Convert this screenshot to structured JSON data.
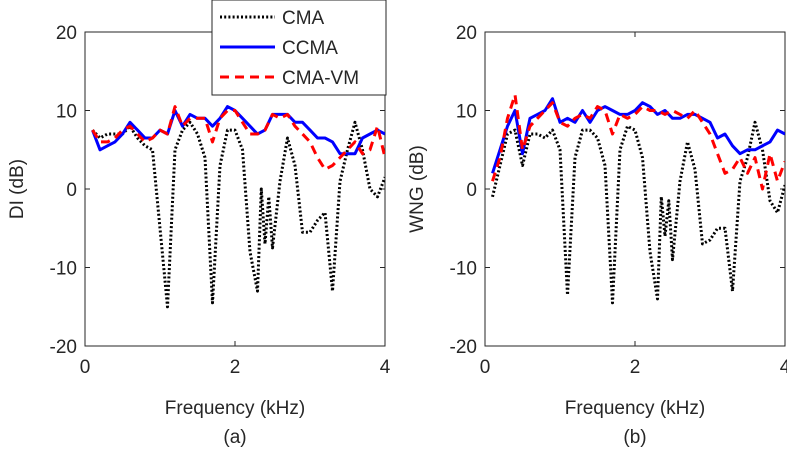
{
  "chart_data": [
    {
      "type": "line",
      "panel_label": "(a)",
      "xlabel": "Frequency (kHz)",
      "ylabel": "DI (dB)",
      "xlim": [
        0,
        4
      ],
      "ylim": [
        -20,
        20
      ],
      "xticks": [
        0,
        2,
        4
      ],
      "yticks": [
        20,
        10,
        0,
        -10,
        -20
      ],
      "grid": false,
      "series": [
        {
          "name": "CMA",
          "color": "#000000",
          "style": "dotted",
          "points": [
            [
              0.1,
              7.5
            ],
            [
              0.2,
              6.5
            ],
            [
              0.3,
              7
            ],
            [
              0.4,
              7
            ],
            [
              0.5,
              7
            ],
            [
              0.6,
              8
            ],
            [
              0.7,
              6.5
            ],
            [
              0.8,
              5.5
            ],
            [
              0.9,
              5
            ],
            [
              1.0,
              -5
            ],
            [
              1.1,
              -15
            ],
            [
              1.2,
              5
            ],
            [
              1.3,
              7.5
            ],
            [
              1.4,
              8.5
            ],
            [
              1.5,
              7
            ],
            [
              1.6,
              4
            ],
            [
              1.7,
              -14.5
            ],
            [
              1.8,
              3
            ],
            [
              1.9,
              7.5
            ],
            [
              2.0,
              7.5
            ],
            [
              2.1,
              5
            ],
            [
              2.2,
              -8
            ],
            [
              2.3,
              -13
            ],
            [
              2.35,
              0
            ],
            [
              2.4,
              -7
            ],
            [
              2.45,
              -1
            ],
            [
              2.5,
              -7.5
            ],
            [
              2.6,
              1
            ],
            [
              2.7,
              6.5
            ],
            [
              2.8,
              3
            ],
            [
              2.9,
              -5.5
            ],
            [
              3.0,
              -5.5
            ],
            [
              3.1,
              -4
            ],
            [
              3.2,
              -3
            ],
            [
              3.3,
              -13
            ],
            [
              3.4,
              1
            ],
            [
              3.5,
              5
            ],
            [
              3.6,
              8.5
            ],
            [
              3.7,
              5
            ],
            [
              3.8,
              0
            ],
            [
              3.9,
              -1
            ],
            [
              4.0,
              1.5
            ]
          ]
        },
        {
          "name": "CCMA",
          "color": "#0000ff",
          "style": "solid",
          "points": [
            [
              0.1,
              7.5
            ],
            [
              0.2,
              5
            ],
            [
              0.3,
              5.5
            ],
            [
              0.4,
              6
            ],
            [
              0.5,
              7
            ],
            [
              0.6,
              8.5
            ],
            [
              0.7,
              7.5
            ],
            [
              0.8,
              6.5
            ],
            [
              0.9,
              6.5
            ],
            [
              1.0,
              7.5
            ],
            [
              1.1,
              7
            ],
            [
              1.2,
              10
            ],
            [
              1.3,
              8
            ],
            [
              1.4,
              9.5
            ],
            [
              1.5,
              9
            ],
            [
              1.6,
              9
            ],
            [
              1.7,
              8
            ],
            [
              1.8,
              9
            ],
            [
              1.9,
              10.5
            ],
            [
              2.0,
              10
            ],
            [
              2.1,
              9
            ],
            [
              2.2,
              8
            ],
            [
              2.3,
              7
            ],
            [
              2.4,
              7.5
            ],
            [
              2.5,
              9.5
            ],
            [
              2.6,
              9.5
            ],
            [
              2.7,
              9.5
            ],
            [
              2.8,
              8.5
            ],
            [
              2.9,
              8.5
            ],
            [
              3.0,
              7.5
            ],
            [
              3.1,
              6.5
            ],
            [
              3.2,
              6.5
            ],
            [
              3.3,
              6
            ],
            [
              3.4,
              4.5
            ],
            [
              3.5,
              4.5
            ],
            [
              3.6,
              4.5
            ],
            [
              3.7,
              6.5
            ],
            [
              3.8,
              7
            ],
            [
              3.9,
              7.5
            ],
            [
              4.0,
              7
            ]
          ]
        },
        {
          "name": "CMA-VM",
          "color": "#ff0000",
          "style": "dashed",
          "points": [
            [
              0.1,
              7.5
            ],
            [
              0.2,
              6
            ],
            [
              0.3,
              6
            ],
            [
              0.4,
              6.5
            ],
            [
              0.5,
              7.5
            ],
            [
              0.6,
              8
            ],
            [
              0.7,
              7
            ],
            [
              0.8,
              6
            ],
            [
              0.9,
              6.5
            ],
            [
              1.0,
              7.5
            ],
            [
              1.1,
              7
            ],
            [
              1.2,
              10.5
            ],
            [
              1.3,
              8
            ],
            [
              1.4,
              9
            ],
            [
              1.5,
              9
            ],
            [
              1.6,
              9
            ],
            [
              1.7,
              6
            ],
            [
              1.8,
              9
            ],
            [
              1.9,
              10
            ],
            [
              2.0,
              10
            ],
            [
              2.1,
              8.5
            ],
            [
              2.2,
              7
            ],
            [
              2.3,
              7
            ],
            [
              2.4,
              7.5
            ],
            [
              2.5,
              9.5
            ],
            [
              2.6,
              9
            ],
            [
              2.7,
              9.5
            ],
            [
              2.8,
              8
            ],
            [
              2.9,
              7
            ],
            [
              3.0,
              6
            ],
            [
              3.1,
              4
            ],
            [
              3.2,
              2.5
            ],
            [
              3.3,
              3
            ],
            [
              3.4,
              4
            ],
            [
              3.5,
              5
            ],
            [
              3.6,
              6
            ],
            [
              3.7,
              4.5
            ],
            [
              3.8,
              5
            ],
            [
              3.9,
              8
            ],
            [
              4.0,
              4
            ]
          ]
        }
      ]
    },
    {
      "type": "line",
      "panel_label": "(b)",
      "xlabel": "Frequency (kHz)",
      "ylabel": "WNG (dB)",
      "xlim": [
        0,
        4
      ],
      "ylim": [
        -20,
        20
      ],
      "xticks": [
        0,
        2,
        4
      ],
      "yticks": [
        20,
        10,
        0,
        -10,
        -20
      ],
      "grid": false,
      "series": [
        {
          "name": "CMA",
          "color": "#000000",
          "style": "dotted",
          "points": [
            [
              0.1,
              -1
            ],
            [
              0.2,
              3
            ],
            [
              0.3,
              7
            ],
            [
              0.4,
              7.5
            ],
            [
              0.5,
              3
            ],
            [
              0.6,
              7
            ],
            [
              0.7,
              7
            ],
            [
              0.8,
              6.5
            ],
            [
              0.9,
              7.5
            ],
            [
              1.0,
              5
            ],
            [
              1.1,
              -13.5
            ],
            [
              1.2,
              4
            ],
            [
              1.3,
              7.5
            ],
            [
              1.4,
              7.5
            ],
            [
              1.5,
              6.5
            ],
            [
              1.6,
              3
            ],
            [
              1.7,
              -14.5
            ],
            [
              1.8,
              5
            ],
            [
              1.9,
              8
            ],
            [
              2.0,
              7.5
            ],
            [
              2.1,
              4
            ],
            [
              2.2,
              -8
            ],
            [
              2.3,
              -14
            ],
            [
              2.35,
              -1
            ],
            [
              2.4,
              -6
            ],
            [
              2.45,
              -1.5
            ],
            [
              2.5,
              -9
            ],
            [
              2.6,
              1
            ],
            [
              2.7,
              6
            ],
            [
              2.8,
              2.5
            ],
            [
              2.9,
              -7
            ],
            [
              3.0,
              -6.5
            ],
            [
              3.1,
              -5
            ],
            [
              3.2,
              -5
            ],
            [
              3.3,
              -13
            ],
            [
              3.4,
              1
            ],
            [
              3.5,
              4
            ],
            [
              3.6,
              8.5
            ],
            [
              3.7,
              5
            ],
            [
              3.8,
              -1.5
            ],
            [
              3.9,
              -3
            ],
            [
              4.0,
              0.5
            ]
          ]
        },
        {
          "name": "CCMA",
          "color": "#0000ff",
          "style": "solid",
          "points": [
            [
              0.1,
              2
            ],
            [
              0.2,
              5
            ],
            [
              0.3,
              8
            ],
            [
              0.4,
              10
            ],
            [
              0.5,
              4.5
            ],
            [
              0.6,
              9
            ],
            [
              0.7,
              9.5
            ],
            [
              0.8,
              10
            ],
            [
              0.9,
              11.5
            ],
            [
              1.0,
              8.5
            ],
            [
              1.1,
              9
            ],
            [
              1.2,
              8.5
            ],
            [
              1.3,
              10
            ],
            [
              1.4,
              8.5
            ],
            [
              1.5,
              10
            ],
            [
              1.6,
              10.5
            ],
            [
              1.7,
              10
            ],
            [
              1.8,
              9.5
            ],
            [
              1.9,
              9.5
            ],
            [
              2.0,
              10
            ],
            [
              2.1,
              11
            ],
            [
              2.2,
              10.5
            ],
            [
              2.3,
              9.5
            ],
            [
              2.4,
              10
            ],
            [
              2.5,
              9
            ],
            [
              2.6,
              9
            ],
            [
              2.7,
              9.5
            ],
            [
              2.8,
              9.5
            ],
            [
              2.9,
              9
            ],
            [
              3.0,
              8.5
            ],
            [
              3.1,
              6.5
            ],
            [
              3.2,
              7
            ],
            [
              3.3,
              5.5
            ],
            [
              3.4,
              4.5
            ],
            [
              3.5,
              5
            ],
            [
              3.6,
              5
            ],
            [
              3.7,
              5.5
            ],
            [
              3.8,
              6
            ],
            [
              3.9,
              7.5
            ],
            [
              4.0,
              7
            ]
          ]
        },
        {
          "name": "CMA-VM",
          "color": "#ff0000",
          "style": "dashed",
          "points": [
            [
              0.1,
              1
            ],
            [
              0.2,
              4
            ],
            [
              0.3,
              9
            ],
            [
              0.4,
              12
            ],
            [
              0.5,
              5
            ],
            [
              0.6,
              8
            ],
            [
              0.7,
              9
            ],
            [
              0.8,
              10
            ],
            [
              0.9,
              11
            ],
            [
              1.0,
              8.5
            ],
            [
              1.1,
              8
            ],
            [
              1.2,
              9
            ],
            [
              1.3,
              9.5
            ],
            [
              1.4,
              9
            ],
            [
              1.5,
              10.5
            ],
            [
              1.6,
              10
            ],
            [
              1.7,
              7
            ],
            [
              1.8,
              9.5
            ],
            [
              1.9,
              9
            ],
            [
              2.0,
              9.5
            ],
            [
              2.1,
              10.5
            ],
            [
              2.2,
              10
            ],
            [
              2.3,
              10
            ],
            [
              2.4,
              9.5
            ],
            [
              2.5,
              10
            ],
            [
              2.6,
              9.5
            ],
            [
              2.7,
              9
            ],
            [
              2.8,
              10
            ],
            [
              2.9,
              8.5
            ],
            [
              3.0,
              7
            ],
            [
              3.1,
              4.5
            ],
            [
              3.2,
              2
            ],
            [
              3.3,
              2.5
            ],
            [
              3.4,
              4
            ],
            [
              3.5,
              2
            ],
            [
              3.6,
              4
            ],
            [
              3.7,
              0
            ],
            [
              3.8,
              4.5
            ],
            [
              3.9,
              1
            ],
            [
              4.0,
              3.5
            ]
          ]
        }
      ]
    }
  ],
  "legend": {
    "placement": "top-center",
    "entries": [
      {
        "label": "CMA",
        "color": "#000000",
        "style": "dotted"
      },
      {
        "label": "CCMA",
        "color": "#0000ff",
        "style": "solid"
      },
      {
        "label": "CMA-VM",
        "color": "#ff0000",
        "style": "dashed"
      }
    ]
  }
}
